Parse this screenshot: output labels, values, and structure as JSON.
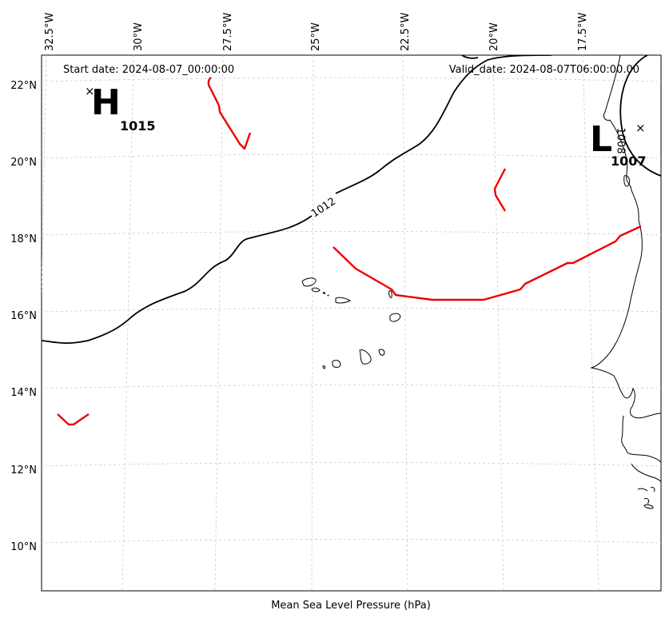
{
  "header": {
    "start_date": "Start date: 2024-08-07_00:00:00",
    "valid_date": "Valid_date: 2024-08-07T06:00:00.00"
  },
  "xlabel": "Mean Sea Level Pressure (hPa)",
  "longitude_labels": [
    "32.5°W",
    "30°W",
    "27.5°W",
    "25°W",
    "22.5°W",
    "20°W",
    "17.5°W"
  ],
  "latitude_labels": [
    "22°N",
    "20°N",
    "18°N",
    "16°N",
    "14°N",
    "12°N",
    "10°N"
  ],
  "pressure_centers": [
    {
      "type": "H",
      "value": "1015"
    },
    {
      "type": "L",
      "value": "1007"
    }
  ],
  "contour_labels": [
    "1012",
    "1008"
  ],
  "colors": {
    "isobar": "#000000",
    "trough": "#ee0000",
    "grid": "#cccccc",
    "coastline": "#000000"
  }
}
